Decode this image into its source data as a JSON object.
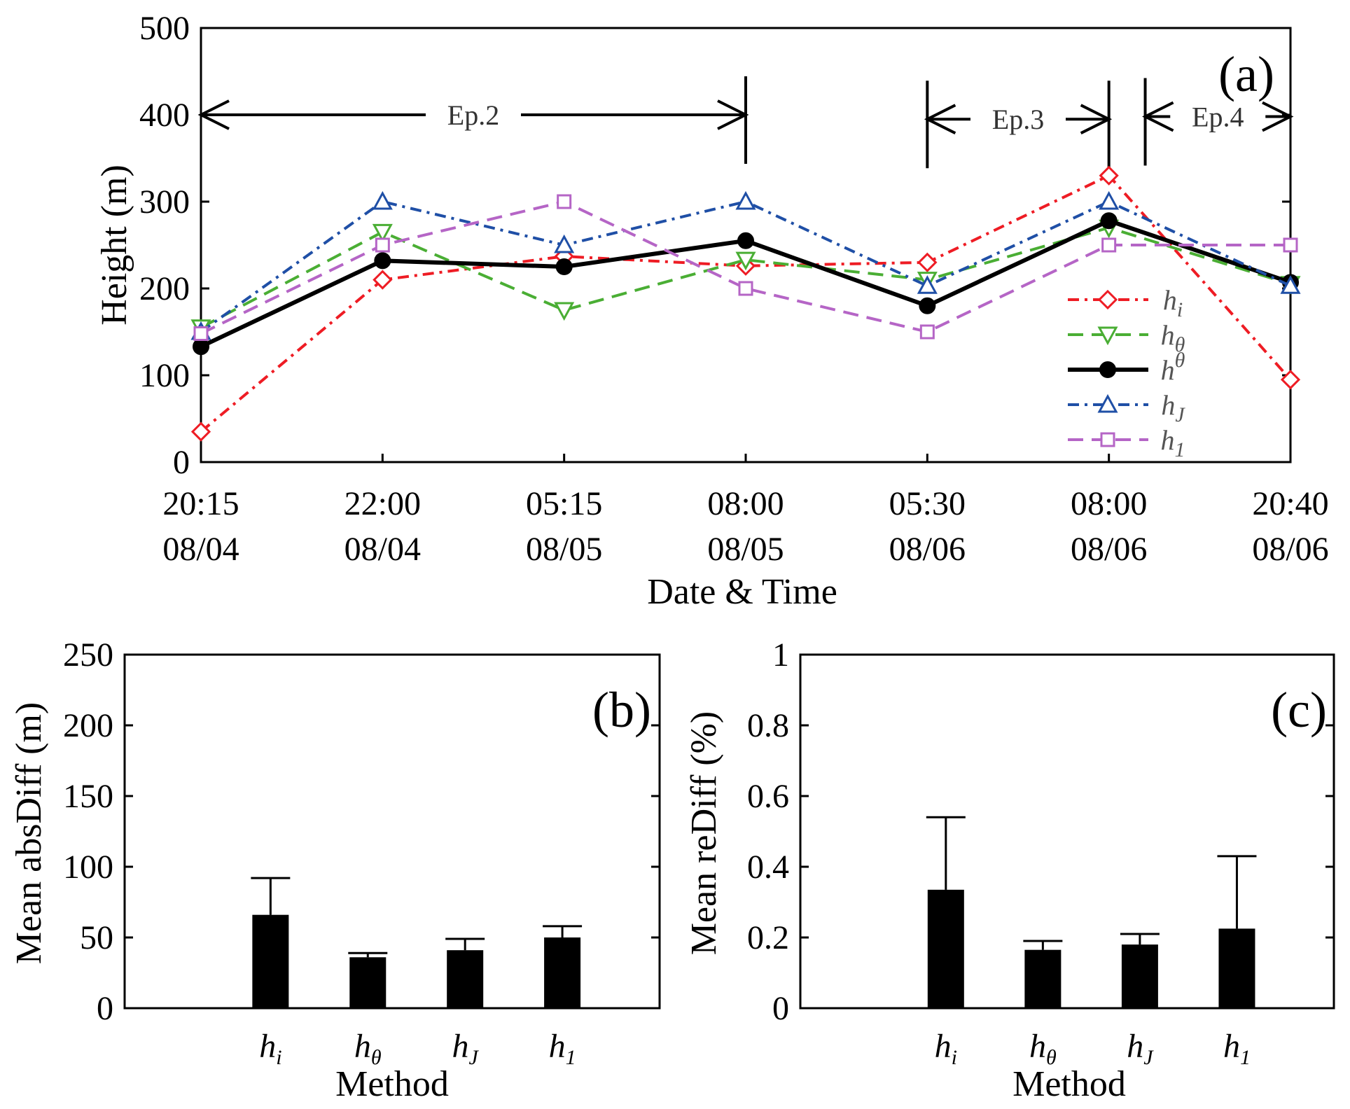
{
  "chart_data": [
    {
      "id": "a",
      "type": "line",
      "panel_label": "(a)",
      "xlabel": "Date & Time",
      "ylabel": "Height (m)",
      "ylim": [
        0,
        500
      ],
      "yticks": [
        "0",
        "100",
        "200",
        "300",
        "400",
        "500"
      ],
      "categories": [
        {
          "time": "20:15",
          "date": "08/04"
        },
        {
          "time": "22:00",
          "date": "08/04"
        },
        {
          "time": "05:15",
          "date": "08/05"
        },
        {
          "time": "08:00",
          "date": "08/05"
        },
        {
          "time": "05:30",
          "date": "08/06"
        },
        {
          "time": "08:00",
          "date": "08/06"
        },
        {
          "time": "20:40",
          "date": "08/06"
        }
      ],
      "series": [
        {
          "name": "h_i",
          "base": "h",
          "sub": "i",
          "sup": "",
          "color": "#ee1c24",
          "dash": "dashdot",
          "marker": "diamond",
          "values": [
            35,
            210,
            237,
            226,
            230,
            330,
            95
          ]
        },
        {
          "name": "h_θ",
          "base": "h",
          "sub": "θ",
          "sup": "",
          "color": "#4aae34",
          "dash": "dash",
          "marker": "triangle-down",
          "values": [
            155,
            265,
            175,
            233,
            210,
            270,
            205
          ]
        },
        {
          "name": "h^θ",
          "base": "h",
          "sub": "",
          "sup": "θ",
          "color": "#000000",
          "dash": "solid",
          "marker": "circle",
          "values": [
            133,
            232,
            225,
            255,
            180,
            278,
            207
          ]
        },
        {
          "name": "h_J",
          "base": "h",
          "sub": "J",
          "sup": "",
          "color": "#1f4fa6",
          "dash": "dashdot",
          "marker": "triangle-up",
          "values": [
            150,
            300,
            250,
            300,
            203,
            300,
            203
          ]
        },
        {
          "name": "h_1",
          "base": "h",
          "sub": "1",
          "sup": "",
          "color": "#b565c6",
          "dash": "dash",
          "marker": "square",
          "values": [
            148,
            250,
            300,
            200,
            150,
            250,
            250
          ]
        }
      ],
      "episodes": [
        {
          "label": "Ep.2",
          "start": 0,
          "end": 3,
          "y": 400
        },
        {
          "label": "Ep.3",
          "start": 4,
          "end": 5,
          "y": 395
        },
        {
          "label": "Ep.4",
          "start": 5.2,
          "end": 6,
          "y": 398
        }
      ],
      "legend_position": "lower-right"
    },
    {
      "id": "b",
      "type": "bar",
      "panel_label": "(b)",
      "xlabel": "Method",
      "ylabel": "Mean absDiff (m)",
      "ylim": [
        0,
        250
      ],
      "yticks": [
        "0",
        "50",
        "100",
        "150",
        "200",
        "250"
      ],
      "categories": [
        {
          "base": "h",
          "sub": "i"
        },
        {
          "base": "h",
          "sub": "θ"
        },
        {
          "base": "h",
          "sub": "J"
        },
        {
          "base": "h",
          "sub": "1"
        }
      ],
      "values": [
        66,
        36,
        41,
        50
      ],
      "error_upper": [
        92,
        39,
        49,
        58
      ]
    },
    {
      "id": "c",
      "type": "bar",
      "panel_label": "(c)",
      "xlabel": "Method",
      "ylabel": "Mean reDiff (%)",
      "ylim": [
        0,
        1
      ],
      "yticks": [
        "0",
        "0.2",
        "0.4",
        "0.6",
        "0.8",
        "1"
      ],
      "categories": [
        {
          "base": "h",
          "sub": "i"
        },
        {
          "base": "h",
          "sub": "θ"
        },
        {
          "base": "h",
          "sub": "J"
        },
        {
          "base": "h",
          "sub": "1"
        }
      ],
      "values": [
        0.335,
        0.165,
        0.18,
        0.225
      ],
      "error_upper": [
        0.54,
        0.19,
        0.21,
        0.43
      ]
    }
  ]
}
